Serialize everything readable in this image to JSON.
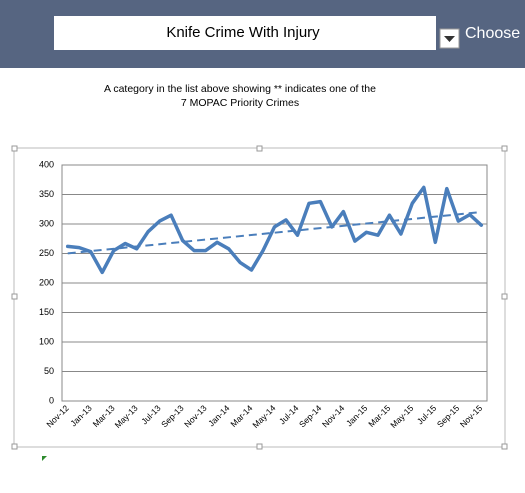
{
  "header": {
    "selected": "Knife Crime With Injury",
    "button": "Choose"
  },
  "note": [
    "A category in the list above showing ** indicates one of the",
    "7 MOPAC Priority Crimes"
  ],
  "chart_data": {
    "type": "line",
    "categories": [
      "Nov-12",
      null,
      "Jan-13",
      null,
      "Mar-13",
      null,
      "May-13",
      null,
      "Jul-13",
      null,
      "Sep-13",
      null,
      "Nov-13",
      null,
      "Jan-14",
      null,
      "Mar-14",
      null,
      "May-14",
      null,
      "Jul-14",
      null,
      "Sep-14",
      null,
      "Nov-14",
      null,
      "Jan-15",
      null,
      "Mar-15",
      null,
      "May-15",
      null,
      "Jul-15",
      null,
      "Sep-15",
      null,
      "Nov-15"
    ],
    "series": [
      {
        "color": "#4a7ebb",
        "values": [
          262,
          260,
          253,
          218,
          255,
          267,
          258,
          287,
          305,
          315,
          272,
          255,
          255,
          269,
          258,
          235,
          222,
          255,
          295,
          307,
          281,
          335,
          338,
          295,
          321,
          271,
          286,
          281,
          315,
          283,
          335,
          362,
          269,
          360,
          305,
          316,
          298
        ]
      }
    ],
    "trendline": true,
    "ylim": [
      0,
      400
    ],
    "yticks": [
      0,
      50,
      100,
      150,
      200,
      250,
      300,
      350,
      400
    ],
    "grid": true
  }
}
